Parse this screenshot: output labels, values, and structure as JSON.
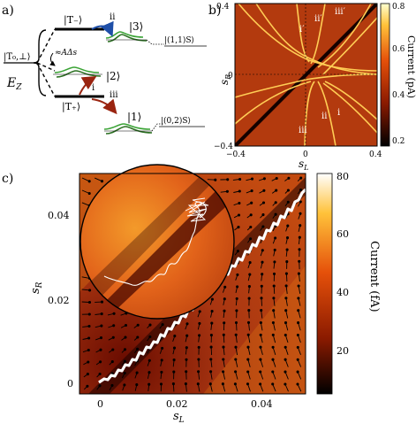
{
  "panels": {
    "a": {
      "label": "a)",
      "levels": {
        "t_minus": "|T₋⟩",
        "t0": "|T₀,⊥⟩",
        "t_plus": "|T₊⟩",
        "s3": "|3⟩",
        "s2": "|2⟩",
        "s1": "|1⟩",
        "s11": "|(1,1)S⟩",
        "s02": "|(0,2)S⟩"
      },
      "ez": "E",
      "ez_sub": "Z",
      "approx": "≈AΔs",
      "arrows": {
        "ii": "ii",
        "i": "i",
        "iii": "iii"
      }
    },
    "b": {
      "label": "b)",
      "xlabel": "s",
      "xlabel_sub": "L",
      "ylabel": "s",
      "ylabel_sub": "R",
      "colorbar_label": "Current (pA)",
      "chart_data": {
        "type": "heatmap",
        "title": "",
        "xlim": [
          -0.4,
          0.4
        ],
        "ylim": [
          -0.4,
          0.4
        ],
        "x_ticks": [
          "−0.4",
          "0",
          "0.4"
        ],
        "y_ticks": [
          "0.4",
          "0",
          "−0.4"
        ],
        "colorbar": {
          "min": 0.2,
          "max": 0.8,
          "ticks": [
            "0.8",
            "0.6",
            "0.4",
            "0.2"
          ]
        },
        "annotations": [
          "i",
          "ii",
          "iii",
          "i′",
          "ii′",
          "iii′"
        ]
      }
    },
    "c": {
      "label": "c)",
      "xlabel": "s",
      "xlabel_sub": "L",
      "ylabel": "s",
      "ylabel_sub": "R",
      "colorbar_label": "Current (fA)",
      "chart_data": {
        "type": "heatmap",
        "title": "",
        "xlim": [
          -0.005,
          0.05
        ],
        "ylim": [
          -0.003,
          0.05
        ],
        "x_ticks": [
          "0",
          "0.02",
          "0.04"
        ],
        "y_ticks": [
          "0.04",
          "0.02",
          "0"
        ],
        "colorbar": {
          "min": 5,
          "max": 80,
          "ticks": [
            "80",
            "60",
            "40",
            "20"
          ]
        }
      }
    }
  },
  "colors": {
    "field_dark": "#2a0300",
    "field_mid": "#a83511",
    "field_light": "#e0700f",
    "hot_line": "#ffd36a",
    "trajectory": "#ffffff",
    "arrow_blue": "#1f4fa8",
    "arrow_red": "#9a2410",
    "gaussian_green": "#3aa335"
  }
}
